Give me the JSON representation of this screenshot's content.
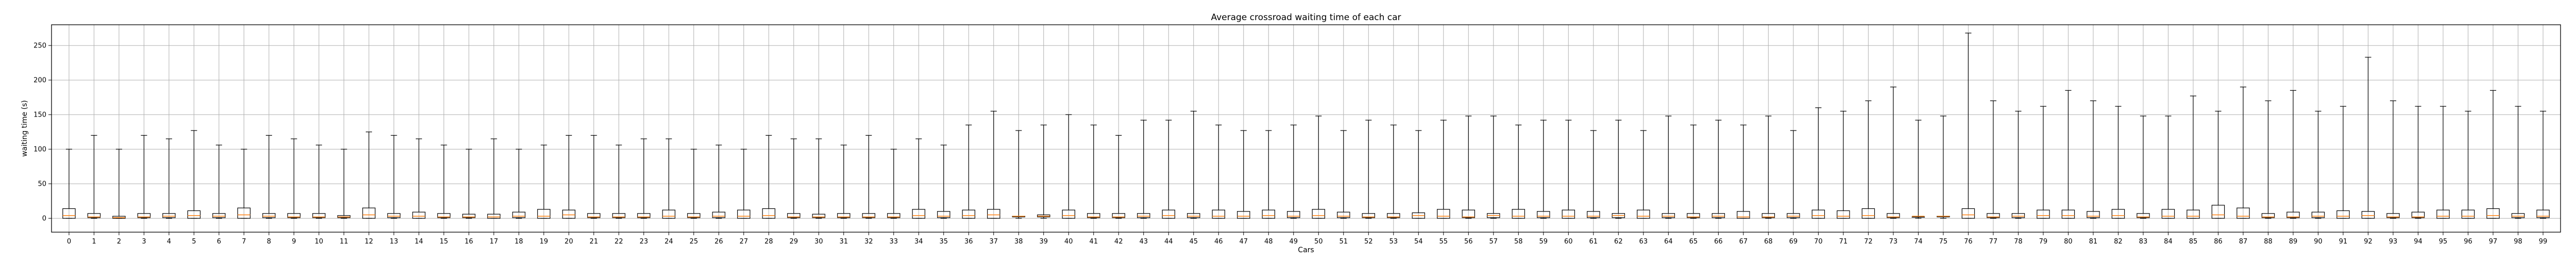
{
  "chart_data": {
    "type": "boxplot",
    "title": "Average crossroad waiting time of each car",
    "xlabel": "Cars",
    "ylabel": "waiting time (s)",
    "ylim": [
      -20,
      280
    ],
    "yticks": [
      0,
      50,
      100,
      150,
      200,
      250
    ],
    "grid": true,
    "categories": [
      "0",
      "1",
      "2",
      "3",
      "4",
      "5",
      "6",
      "7",
      "8",
      "9",
      "10",
      "11",
      "12",
      "13",
      "14",
      "15",
      "16",
      "17",
      "18",
      "19",
      "20",
      "21",
      "22",
      "23",
      "24",
      "25",
      "26",
      "27",
      "28",
      "29",
      "30",
      "31",
      "32",
      "33",
      "34",
      "35",
      "36",
      "37",
      "38",
      "39",
      "40",
      "41",
      "42",
      "43",
      "44",
      "45",
      "46",
      "47",
      "48",
      "49",
      "50",
      "51",
      "52",
      "53",
      "54",
      "55",
      "56",
      "57",
      "58",
      "59",
      "60",
      "61",
      "62",
      "63",
      "64",
      "65",
      "66",
      "67",
      "68",
      "69",
      "70",
      "71",
      "72",
      "73",
      "74",
      "75",
      "76",
      "77",
      "78",
      "79",
      "80",
      "81",
      "82",
      "83",
      "84",
      "85",
      "86",
      "87",
      "88",
      "89",
      "90",
      "91",
      "92",
      "93",
      "94",
      "95",
      "96",
      "97",
      "98",
      "99"
    ],
    "boxes": {
      "q1": [
        0,
        1,
        0,
        1,
        1,
        0,
        1,
        0,
        1,
        1,
        1,
        1,
        0,
        1,
        0,
        1,
        1,
        0,
        1,
        0,
        0,
        1,
        1,
        1,
        0,
        1,
        1,
        0,
        0,
        1,
        1,
        1,
        1,
        1,
        0,
        1,
        0,
        0,
        2,
        2,
        0,
        1,
        1,
        1,
        0,
        1,
        0,
        0,
        0,
        1,
        0,
        1,
        1,
        1,
        0,
        0,
        1,
        1,
        0,
        1,
        0,
        1,
        1,
        0,
        1,
        1,
        1,
        0,
        1,
        1,
        0,
        0,
        0,
        1,
        2,
        2,
        0,
        1,
        1,
        0,
        0,
        1,
        0,
        1,
        0,
        0,
        0,
        0,
        1,
        1,
        1,
        0,
        0,
        1,
        1,
        0,
        0,
        0,
        1,
        1
      ],
      "median": [
        4,
        2,
        1,
        2,
        3,
        4,
        3,
        5,
        3,
        2,
        2,
        2,
        5,
        3,
        3,
        2,
        2,
        2,
        3,
        3,
        5,
        2,
        2,
        2,
        3,
        2,
        3,
        3,
        4,
        2,
        2,
        2,
        2,
        2,
        4,
        3,
        4,
        5,
        3,
        3,
        4,
        2,
        2,
        3,
        4,
        3,
        3,
        3,
        4,
        3,
        4,
        3,
        2,
        2,
        4,
        3,
        2,
        4,
        3,
        3,
        3,
        3,
        4,
        3,
        3,
        2,
        3,
        2,
        2,
        3,
        4,
        3,
        4,
        2,
        3,
        3,
        5,
        2,
        3,
        4,
        4,
        3,
        4,
        2,
        3,
        3,
        5,
        3,
        2,
        2,
        3,
        3,
        4,
        2,
        2,
        3,
        3,
        4,
        3,
        3
      ],
      "q3": [
        14,
        7,
        3,
        7,
        7,
        11,
        7,
        15,
        7,
        7,
        7,
        4,
        15,
        7,
        9,
        7,
        6,
        6,
        9,
        13,
        12,
        7,
        7,
        7,
        12,
        7,
        9,
        12,
        14,
        7,
        6,
        7,
        7,
        7,
        13,
        10,
        12,
        13,
        3,
        5,
        12,
        7,
        7,
        7,
        12,
        7,
        12,
        10,
        12,
        10,
        13,
        9,
        7,
        7,
        8,
        13,
        12,
        7,
        13,
        10,
        12,
        10,
        7,
        12,
        7,
        7,
        7,
        10,
        7,
        7,
        12,
        11,
        14,
        7,
        2,
        3,
        14,
        7,
        7,
        12,
        12,
        10,
        13,
        7,
        13,
        12,
        19,
        15,
        7,
        9,
        9,
        11,
        10,
        7,
        9,
        12,
        12,
        14,
        7,
        12
      ],
      "whislo": [
        0,
        0,
        0,
        0,
        0,
        0,
        0,
        0,
        0,
        0,
        0,
        0,
        0,
        0,
        0,
        0,
        0,
        0,
        0,
        0,
        0,
        0,
        0,
        0,
        0,
        0,
        0,
        0,
        0,
        0,
        0,
        0,
        0,
        0,
        0,
        0,
        0,
        0,
        0,
        0,
        0,
        0,
        0,
        0,
        0,
        0,
        0,
        0,
        0,
        0,
        0,
        0,
        0,
        0,
        0,
        0,
        0,
        0,
        0,
        0,
        0,
        0,
        0,
        0,
        0,
        0,
        0,
        0,
        0,
        0,
        0,
        0,
        0,
        0,
        0,
        0,
        0,
        0,
        0,
        0,
        0,
        0,
        0,
        0,
        0,
        0,
        0,
        0,
        0,
        0,
        0,
        0,
        0,
        0,
        0,
        0,
        0,
        0,
        0,
        0
      ],
      "whishi": [
        100,
        120,
        100,
        120,
        115,
        127,
        106,
        100,
        120,
        115,
        106,
        100,
        125,
        120,
        115,
        106,
        100,
        115,
        100,
        106,
        120,
        120,
        106,
        115,
        115,
        100,
        106,
        100,
        120,
        115,
        115,
        106,
        120,
        100,
        115,
        106,
        135,
        155,
        127,
        135,
        150,
        135,
        120,
        142,
        142,
        155,
        135,
        127,
        127,
        135,
        148,
        127,
        142,
        135,
        127,
        142,
        148,
        148,
        135,
        142,
        142,
        127,
        142,
        127,
        148,
        135,
        142,
        135,
        148,
        127,
        160,
        155,
        170,
        190,
        142,
        148,
        268,
        170,
        155,
        162,
        185,
        170,
        162,
        148,
        148,
        177,
        155,
        190,
        170,
        185,
        155,
        162,
        233,
        170,
        162,
        162,
        155,
        185,
        162,
        155
      ]
    }
  }
}
